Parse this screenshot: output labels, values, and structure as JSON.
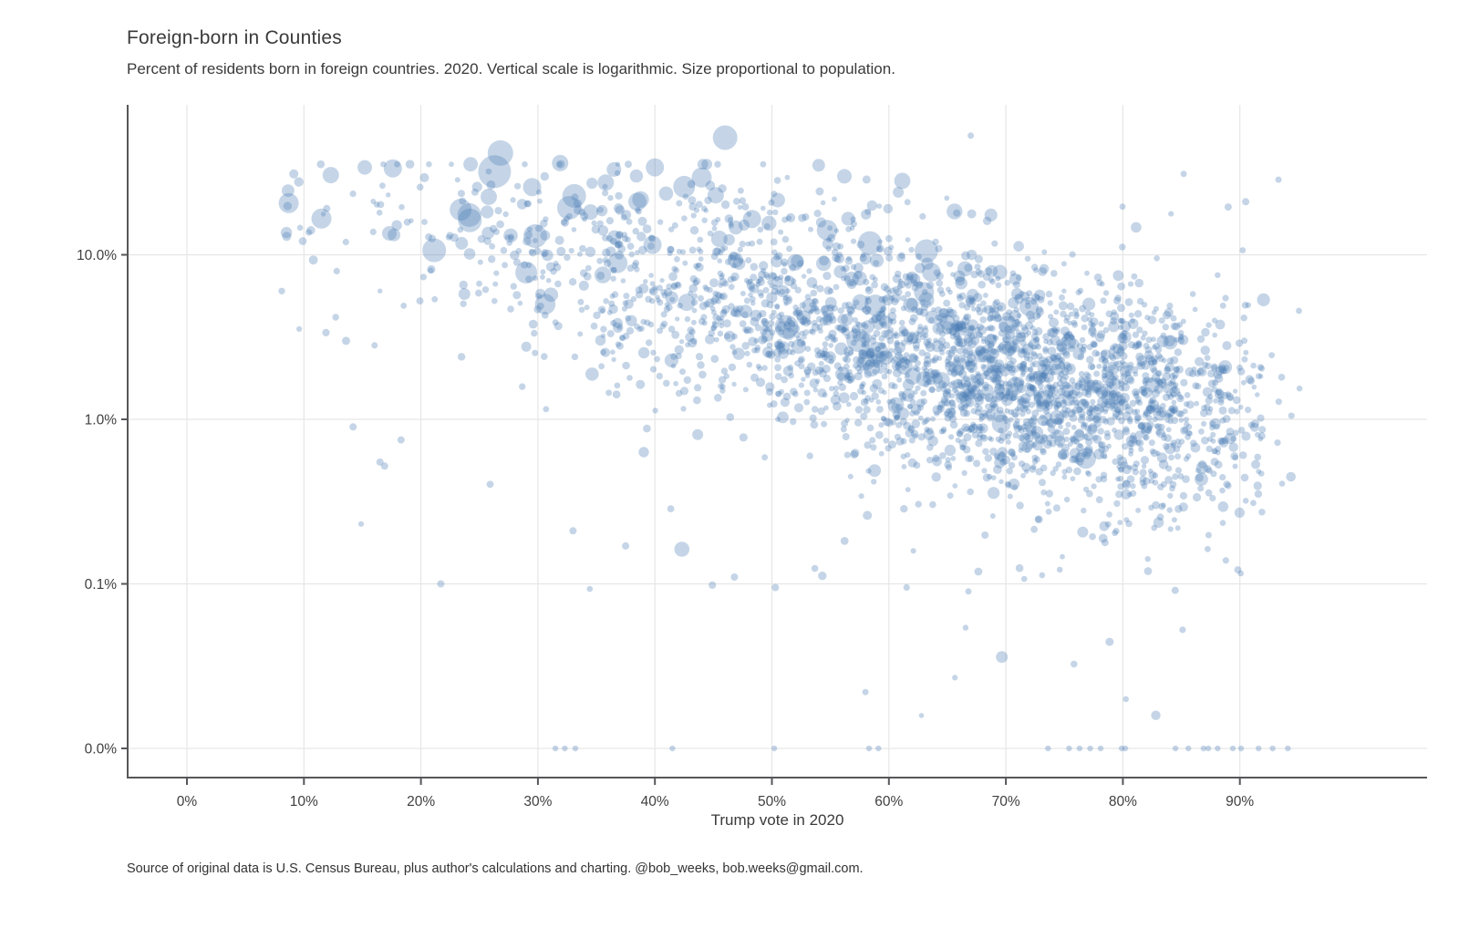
{
  "chart_data": {
    "type": "scatter",
    "title": "Foreign-born in Counties",
    "subtitle": "Percent of residents born in foreign countries. 2020. Vertical scale is logarithmic. Size proportional to population.",
    "xlabel": "Trump vote in 2020",
    "ylabel": "",
    "footer": "Source of original data is U.S. Census Bureau, plus author's calculations and charting. @bob_weeks, bob.weeks@gmail.com.",
    "legend": "none",
    "grid": "on",
    "x_axis": {
      "tick_values": [
        0,
        10,
        20,
        30,
        40,
        50,
        60,
        70,
        80,
        90
      ],
      "tick_labels": [
        "0%",
        "10%",
        "20%",
        "30%",
        "40%",
        "50%",
        "60%",
        "70%",
        "80%",
        "90%"
      ],
      "range_pct": [
        -5,
        106
      ]
    },
    "y_axis": {
      "scale": "logarithmic",
      "ticks": [
        {
          "label": "10.0%",
          "value": 10
        },
        {
          "label": "1.0%",
          "value": 1
        },
        {
          "label": "0.1%",
          "value": 0.1
        },
        {
          "label": "0.0%",
          "value": 0
        }
      ],
      "top_value_pct": 80
    },
    "colors": {
      "point": "#4a7cb5",
      "point_opacity": 0.32,
      "grid": "#e6e6e6",
      "axis": "#57575a",
      "tick_text": "#3f3f3f",
      "title_text": "#3a3a3a"
    },
    "featured_points": [
      [
        26.3,
        32,
        18
      ],
      [
        26.8,
        41.5,
        14
      ],
      [
        46,
        51.5,
        13.5
      ],
      [
        8.7,
        20.6,
        11
      ],
      [
        11.5,
        16.6,
        11
      ],
      [
        12.3,
        30.5,
        9
      ],
      [
        15.2,
        34,
        8
      ],
      [
        17.6,
        33.5,
        10
      ],
      [
        17.3,
        13.5,
        8
      ],
      [
        17.7,
        13.2,
        7
      ],
      [
        23.4,
        18.8,
        12
      ],
      [
        25.8,
        22.5,
        9
      ],
      [
        29.5,
        25.8,
        10
      ],
      [
        33.1,
        22.8,
        13
      ],
      [
        35.8,
        27.5,
        9
      ],
      [
        38.5,
        21,
        10
      ],
      [
        42.5,
        25.9,
        12
      ],
      [
        44,
        29.5,
        11
      ],
      [
        45.2,
        23,
        9
      ],
      [
        36.5,
        33,
        8
      ],
      [
        31.9,
        36.1,
        9
      ],
      [
        40,
        34,
        10
      ],
      [
        48.3,
        16.5,
        10
      ],
      [
        50.5,
        21.5,
        8
      ],
      [
        54,
        35,
        7
      ],
      [
        56.2,
        30,
        8
      ],
      [
        60.8,
        24,
        6
      ],
      [
        29,
        7.8,
        12
      ],
      [
        36.8,
        8.9,
        11
      ],
      [
        39.8,
        11.5,
        10
      ],
      [
        45.5,
        12.5,
        9
      ],
      [
        52,
        9,
        9
      ],
      [
        57.5,
        7.2,
        8
      ],
      [
        62,
        5,
        7
      ],
      [
        13.6,
        3,
        4.5
      ],
      [
        10.8,
        9.3,
        5
      ],
      [
        67,
        53,
        3.5
      ],
      [
        93.3,
        28.6,
        3.5
      ],
      [
        85.2,
        31,
        3.5
      ],
      [
        89,
        19.5,
        4
      ],
      [
        90.5,
        21,
        4
      ],
      [
        21.7,
        0.1,
        4
      ],
      [
        16.5,
        0.55,
        4
      ],
      [
        16.9,
        0.52,
        4
      ],
      [
        14.2,
        0.9,
        4
      ],
      [
        18.3,
        0.75,
        4
      ],
      [
        33,
        0.21,
        4
      ],
      [
        37.5,
        0.17,
        4
      ],
      [
        46.8,
        0.11,
        4
      ],
      [
        50.3,
        0.095,
        4
      ],
      [
        58,
        0.022,
        3.5
      ],
      [
        63.5,
        0.85,
        4
      ],
      [
        66.8,
        0.09,
        3.5
      ]
    ],
    "zero_row_votes": [
      31.5,
      32.3,
      33.2,
      41.5,
      50.2,
      58.3,
      59.1,
      73.6,
      75.4,
      76.3,
      77.2,
      78.1,
      79.9,
      80.2,
      84.5,
      85.6,
      86.9,
      87.3,
      88.1,
      89.4,
      90.1,
      91.6,
      92.8,
      94.1
    ],
    "cloud": {
      "count": 2950,
      "seed": 20201103,
      "x_bins": [
        [
          8,
          15,
          0.8
        ],
        [
          15,
          25,
          1.8
        ],
        [
          25,
          35,
          4.2
        ],
        [
          35,
          45,
          8
        ],
        [
          45,
          55,
          12.5
        ],
        [
          55,
          65,
          18.5
        ],
        [
          65,
          75,
          26
        ],
        [
          75,
          85,
          21.5
        ],
        [
          85,
          92,
          6.2
        ],
        [
          92,
          96,
          0.5
        ]
      ],
      "trend_log10": [
        [
          8,
          1.28
        ],
        [
          20,
          1.08
        ],
        [
          30,
          0.93
        ],
        [
          40,
          0.8
        ],
        [
          50,
          0.64
        ],
        [
          60,
          0.45
        ],
        [
          70,
          0.27
        ],
        [
          80,
          0.12
        ],
        [
          90,
          0.02
        ],
        [
          96,
          -0.02
        ]
      ],
      "noise_sd": 0.34,
      "outlier_prob": 0.02,
      "size": {
        "base": 2.5,
        "scale": 1.1,
        "shape": 0.75,
        "max": 13
      }
    }
  }
}
